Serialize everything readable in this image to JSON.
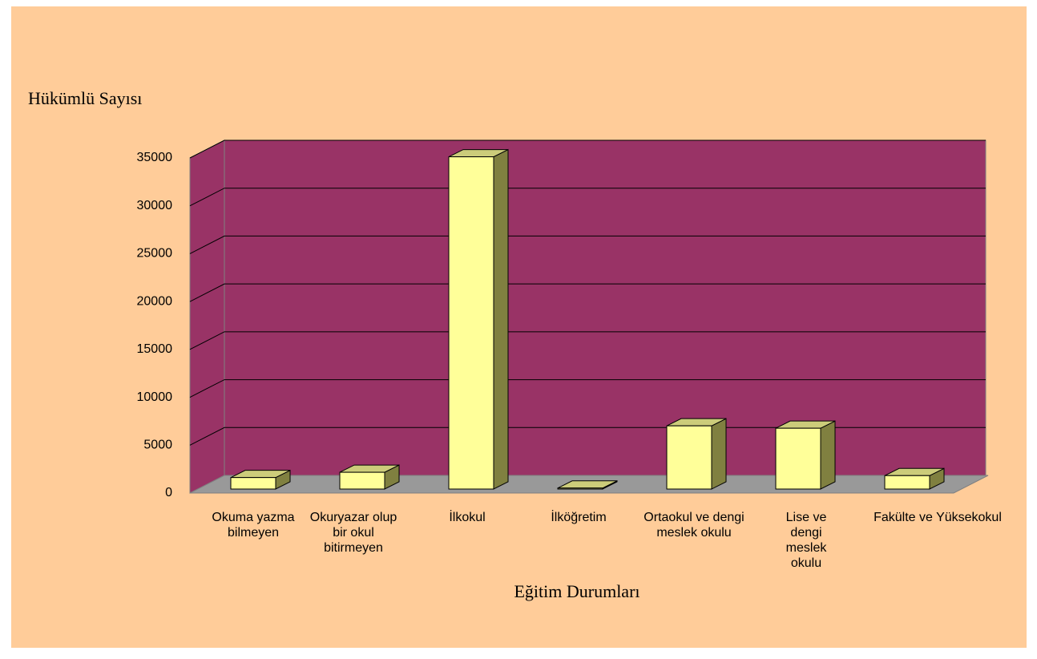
{
  "chart_data": {
    "type": "bar3d",
    "y_label": "Hükümlü Sayısı",
    "x_label": "Eğitim Durumları",
    "categories": [
      "Okuma yazma bilmeyen",
      "Okuryazar olup bir okul bitirmeyen",
      "İlkokul",
      "İlköğretim",
      "Ortaokul ve dengi meslek okulu",
      "Lise ve dengi meslek okulu",
      "Fakülte ve Yüksekokul"
    ],
    "values": [
      1200,
      1750,
      34700,
      100,
      6600,
      6350,
      1400
    ],
    "color": "#FFFF99",
    "ylim": [
      0,
      35000
    ],
    "yticks": [
      0,
      5000,
      10000,
      15000,
      20000,
      25000,
      30000,
      35000
    ],
    "grid": true
  }
}
